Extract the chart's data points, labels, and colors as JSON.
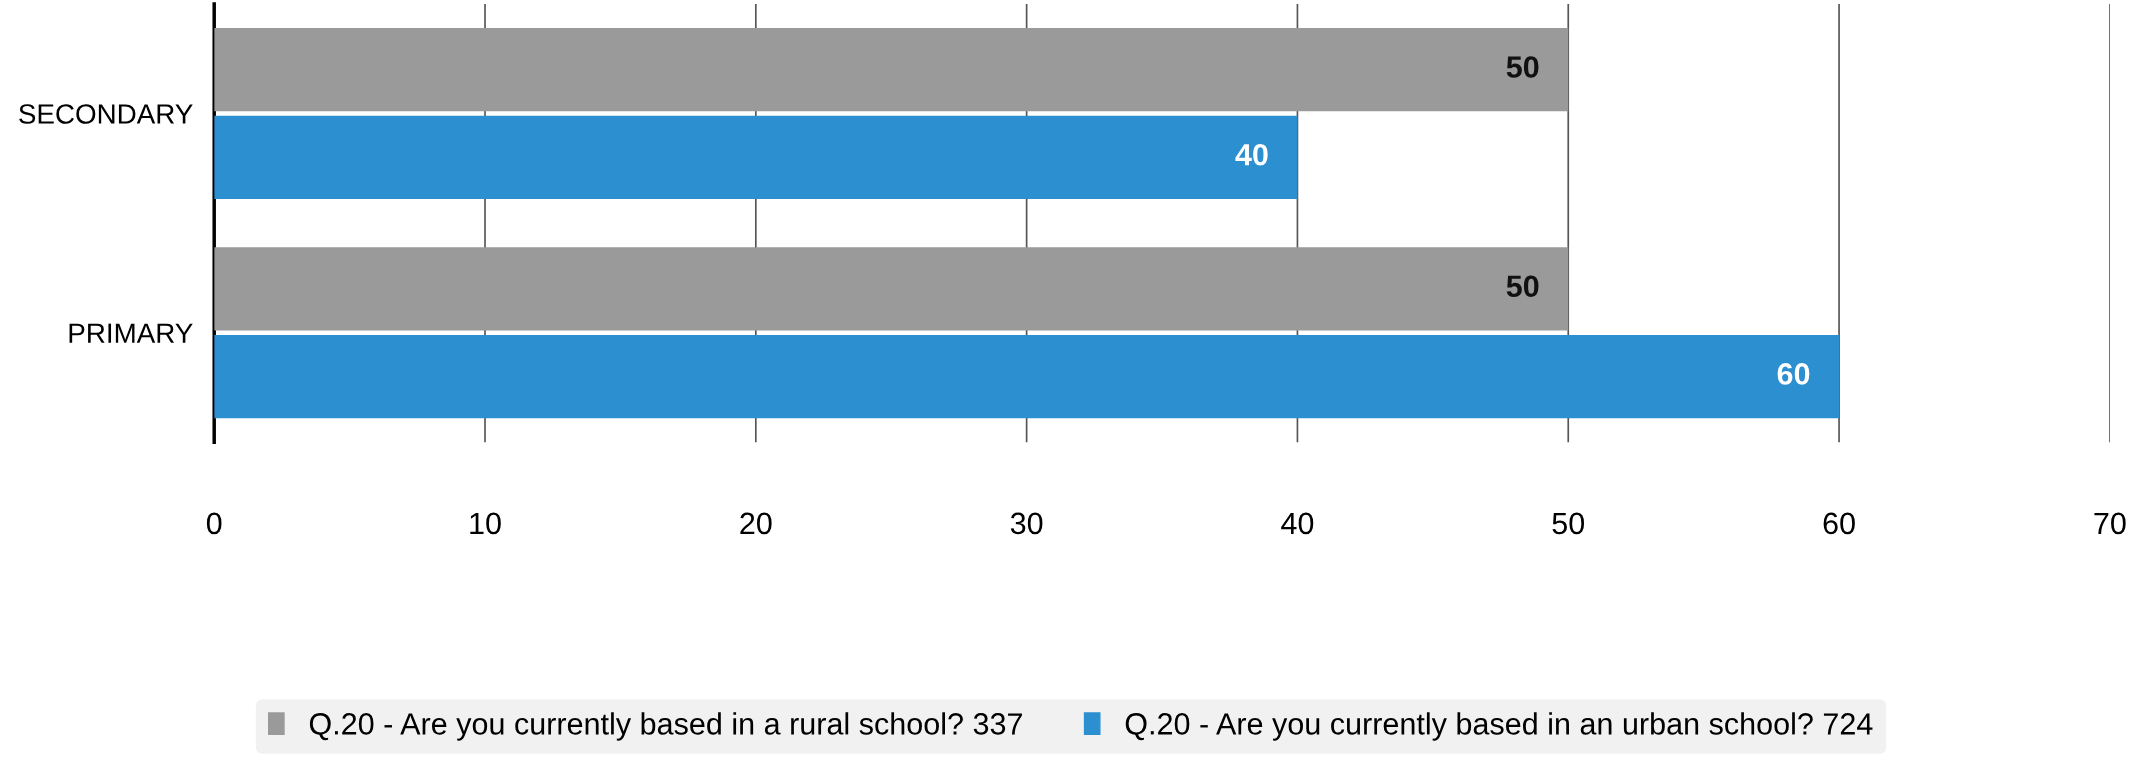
{
  "chart_data": {
    "type": "bar",
    "orientation": "horizontal",
    "categories": [
      "SECONDARY",
      "PRIMARY"
    ],
    "series": [
      {
        "name": "Q.20 - Are you currently based in a rural school? 337",
        "color": "#9a9a9a",
        "values": [
          50,
          50
        ]
      },
      {
        "name": "Q.20 - Are you currently based in an urban school? 724",
        "color": "#2b8fd0",
        "values": [
          40,
          60
        ]
      }
    ],
    "xlim": [
      0,
      70
    ],
    "xticks": [
      0,
      10,
      20,
      30,
      40,
      50,
      60,
      70
    ],
    "grid": "x",
    "legend": "bottom",
    "data_labels": true
  }
}
